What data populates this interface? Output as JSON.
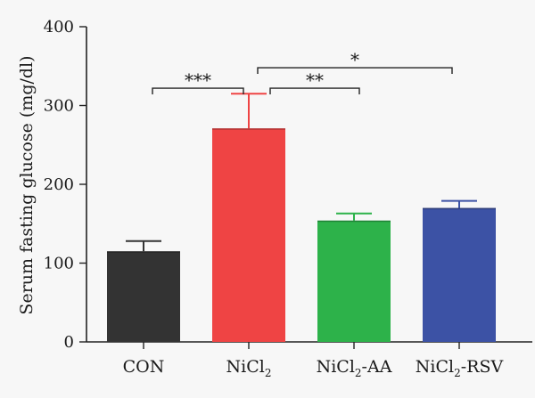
{
  "chart_data": {
    "type": "bar",
    "ylabel": "Serum fasting glucose (mg/dl)",
    "ylim": [
      0,
      400
    ],
    "yticks": [
      0,
      100,
      200,
      300,
      400
    ],
    "grid": false,
    "categories": [
      {
        "text": "CON",
        "main": "CON",
        "sub": "",
        "tail": ""
      },
      {
        "text": "NiCl2",
        "main": "NiCl",
        "sub": "2",
        "tail": ""
      },
      {
        "text": "NiCl2-AA",
        "main": "NiCl",
        "sub": "2",
        "tail": "-AA"
      },
      {
        "text": "NiCl2-RSV",
        "main": "NiCl",
        "sub": "2",
        "tail": "-RSV"
      }
    ],
    "values": [
      115,
      271,
      154,
      170
    ],
    "errors": [
      13,
      44,
      9,
      9
    ],
    "colors": [
      "#333333",
      "#ef4444",
      "#2db24a",
      "#3c52a5"
    ],
    "significance": [
      {
        "from": 0,
        "to": 1,
        "label": "***",
        "level": 322
      },
      {
        "from": 1,
        "to": 2,
        "label": "**",
        "level": 322
      },
      {
        "from": 1,
        "to": 3,
        "label": "*",
        "level": 348
      }
    ]
  }
}
